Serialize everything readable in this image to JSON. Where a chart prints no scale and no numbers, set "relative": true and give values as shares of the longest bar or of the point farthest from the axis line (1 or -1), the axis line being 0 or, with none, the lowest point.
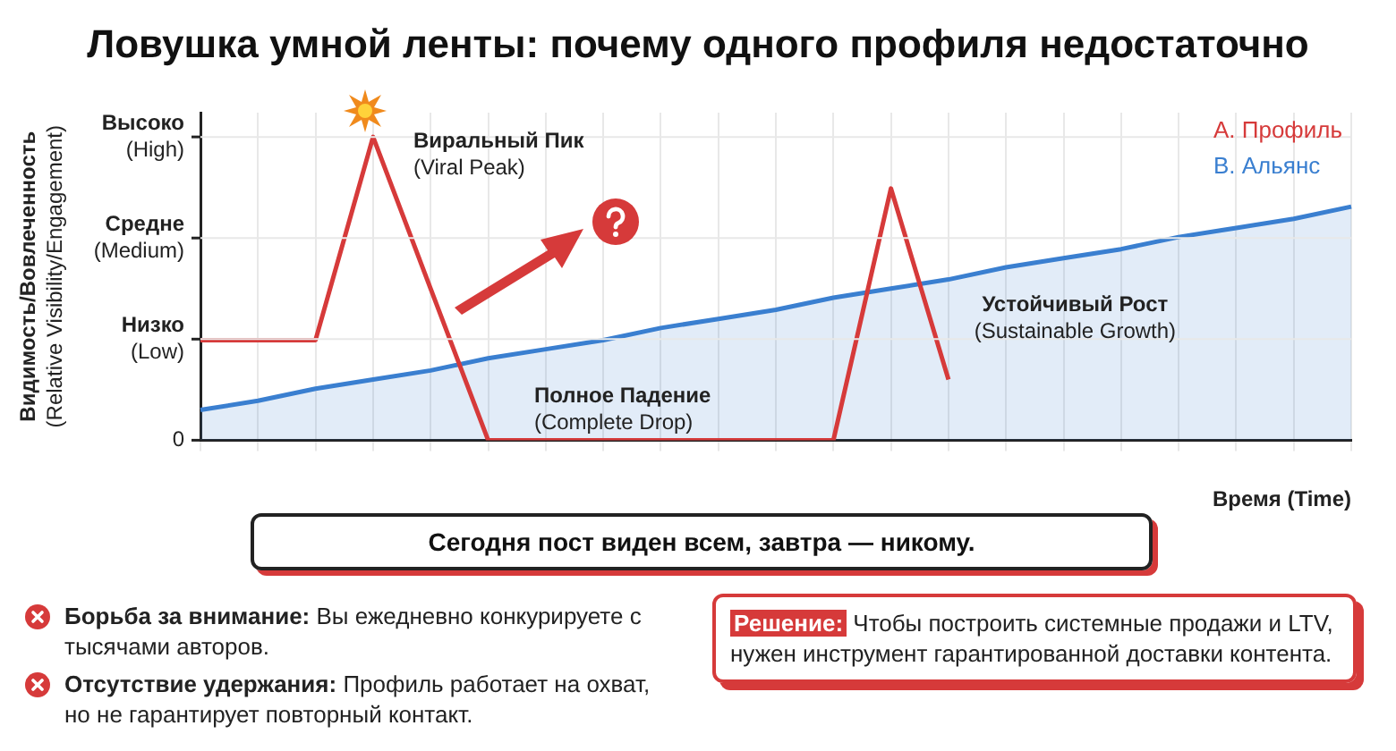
{
  "chart_data": {
    "type": "line",
    "title": "Ловушка умной ленты: почему одного профиля недостаточно",
    "categories": [
      null,
      null,
      null,
      null,
      null,
      null,
      null,
      null,
      null,
      null,
      null,
      null,
      null,
      null,
      null,
      null,
      null,
      null,
      null,
      null,
      null
    ],
    "series": [
      {
        "name": "А. Профиль",
        "color": "#d63a3a",
        "type": "line",
        "values": [
          0.33,
          0.33,
          0.33,
          1,
          0.5,
          0,
          0,
          0,
          0,
          0,
          0,
          0,
          0.83,
          0.2,
          null,
          null,
          null,
          null,
          null,
          null,
          null
        ]
      },
      {
        "name": "B. Альянс",
        "color": "#3a7fd0",
        "type": "area",
        "values": [
          0.1,
          0.13,
          0.17,
          0.2,
          0.23,
          0.27,
          0.3,
          0.33,
          0.37,
          0.4,
          0.43,
          0.47,
          0.5,
          0.53,
          0.57,
          0.6,
          0.63,
          0.67,
          0.7,
          0.73,
          0.77
        ]
      }
    ],
    "xlabel": "Время (Time)",
    "relative": true,
    "grid": true,
    "legend": "top right",
    "marker": "none",
    "annotations": [
      "Виральный Пик\n(Viral Peak)",
      "Полное Падение\n(Complete Drop)",
      "Устойчивый Рост\n(Sustainable Growth)",
      "Сегодня пост виден всем, завтра — никому.",
      "Борьба за внимание: Вы ежедневно конкурируете с тысячами авторов.",
      "Отсутствие удержания: Профиль работает на охват, но не гарантирует повторный контакт.",
      "Решение: Чтобы построить системные продажи и LTV, нужен инструмент гарантированной доставки контента.",
      "0",
      "Низко\n(Low)",
      "Средне\n(Medium)",
      "Высоко\n(High)",
      "Видимость/Вовлеченность\n(Relative Visibility/Engagement)"
    ]
  }
}
